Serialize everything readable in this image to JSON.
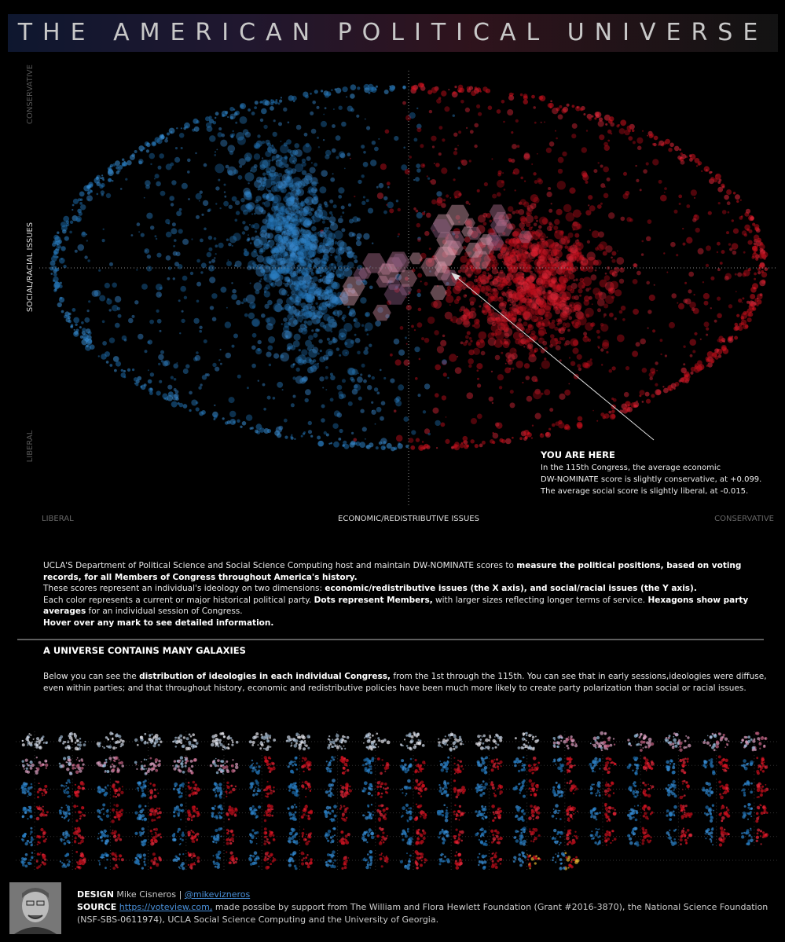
{
  "title": "THE AMERICAN POLITICAL UNIVERSE",
  "main_chart": {
    "y_axis": {
      "top": "CONSERVATIVE",
      "middle": "SOCIAL/RACIAL ISSUES",
      "bottom": "LIBERAL"
    },
    "x_axis": {
      "left": "LIBERAL",
      "middle": "ECONOMIC/REDISTRIBUTIVE ISSUES",
      "right": "CONSERVATIVE"
    },
    "annotation": {
      "title": "YOU ARE HERE",
      "lines": [
        "In the 115th Congress, the average economic",
        "DW-NOMINATE score is slightly conservative, at +0.099.",
        "The average social score is slightly liberal, at -0.015."
      ]
    }
  },
  "intro": [
    [
      {
        "text": "UCLA'S Department of Political Science and Social Science Computing host and maintain DW-NOMINATE scores to ",
        "bold": false
      },
      {
        "text": "measure the political positions, based on voting records, for all Members of Congress throughout America's history.",
        "bold": true
      }
    ],
    [
      {
        "text": "These scores represent an individual's ideology on two dimensions: ",
        "bold": false
      },
      {
        "text": "economic/redistributive issues (the X axis), and social/racial issues (the Y axis).",
        "bold": true
      }
    ],
    [
      {
        "text": "Each color represents a current or major historical political party. ",
        "bold": false
      },
      {
        "text": "Dots represent Members,",
        "bold": true
      },
      {
        "text": " with larger sizes reflecting longer terms of service. ",
        "bold": false
      },
      {
        "text": "Hexagons show party averages",
        "bold": true
      },
      {
        "text": " for an individual session of Congress.",
        "bold": false
      }
    ],
    [
      {
        "text": "Hover over any mark to see detailed information.",
        "bold": true
      }
    ]
  ],
  "section": {
    "heading": "A UNIVERSE CONTAINS MANY GALAXIES",
    "body": [
      {
        "text": "Below you can see the ",
        "bold": false
      },
      {
        "text": "distribution of ideologies in each individual Congress,",
        "bold": true
      },
      {
        "text": " from the 1st through the 115th. You can see that in early sessions,ideologies were diffuse, even within parties; and that throughout history, economic and  redistributive policies have been much more likely to create party polarization than social or racial issues.",
        "bold": false
      }
    ]
  },
  "footer": {
    "design_label": "DESIGN",
    "designer": "Mike Cisneros",
    "separator": "|",
    "handle": "@mikevizneros",
    "source_label": "SOURCE",
    "source_link": "https://voteview.com,",
    "source_text": "made possibe by support from The William and Flora Hewlett Foundation (Grant #2016-3870), the National Science Foundation (NSF-SBS-0611974), UCLA Social Science Computing and the University of Georgia."
  }
}
